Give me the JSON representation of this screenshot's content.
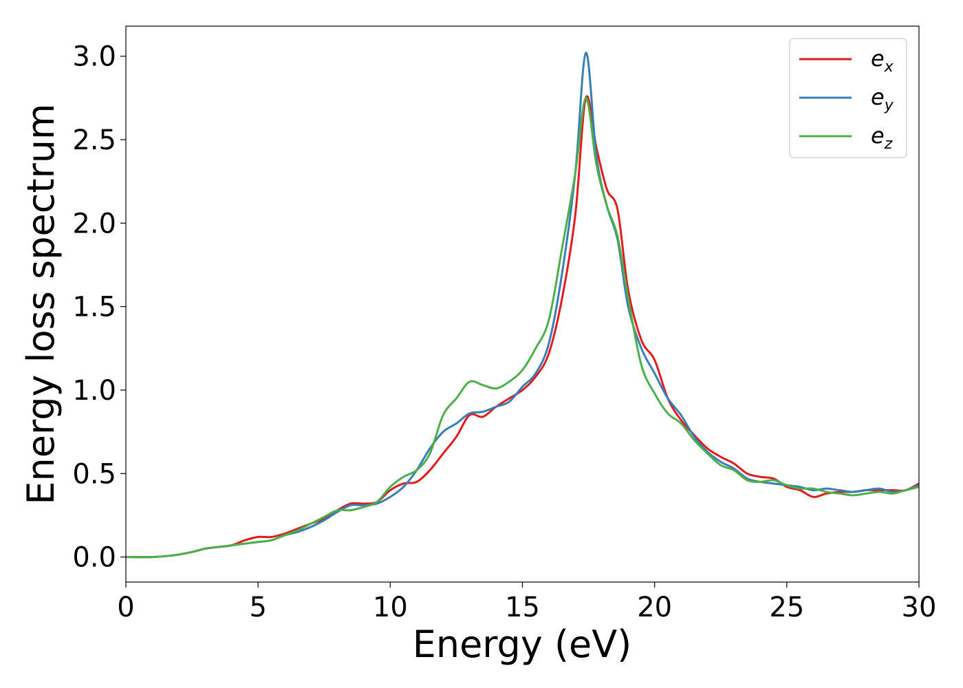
{
  "chart_data": {
    "type": "line",
    "xlabel": "Energy (eV)",
    "ylabel": "Energy loss spectrum",
    "xlim": [
      0,
      30
    ],
    "ylim": [
      -0.15,
      3.18
    ],
    "xticks": [
      0,
      5,
      10,
      15,
      20,
      25,
      30
    ],
    "xtick_labels": [
      "0",
      "5",
      "10",
      "15",
      "20",
      "25",
      "30"
    ],
    "yticks": [
      0.0,
      0.5,
      1.0,
      1.5,
      2.0,
      2.5,
      3.0
    ],
    "ytick_labels": [
      "0.0",
      "0.5",
      "1.0",
      "1.5",
      "2.0",
      "2.5",
      "3.0"
    ],
    "grid": false,
    "legend_position": "top-right",
    "series": [
      {
        "name": "e",
        "name_sub": "x",
        "color": "#e41a1c",
        "x": [
          0,
          1,
          1.8,
          2.5,
          3,
          3.5,
          4,
          4.5,
          5,
          5.5,
          6,
          6.5,
          7,
          7.5,
          8,
          8.5,
          9,
          9.5,
          10,
          10.5,
          11,
          11.5,
          12,
          12.5,
          13,
          13.5,
          14,
          14.5,
          15,
          15.5,
          16,
          16.5,
          17,
          17.4,
          17.8,
          18.2,
          18.6,
          19,
          19.5,
          20,
          20.5,
          21,
          21.5,
          22,
          22.5,
          23,
          23.5,
          24,
          24.5,
          25,
          25.5,
          26,
          26.5,
          27,
          27.5,
          28,
          28.5,
          29,
          29.5,
          30
        ],
        "y": [
          0.0,
          0.0,
          0.01,
          0.03,
          0.05,
          0.06,
          0.07,
          0.1,
          0.12,
          0.12,
          0.14,
          0.17,
          0.2,
          0.23,
          0.28,
          0.32,
          0.32,
          0.33,
          0.4,
          0.44,
          0.45,
          0.52,
          0.62,
          0.72,
          0.85,
          0.84,
          0.9,
          0.95,
          1.0,
          1.08,
          1.22,
          1.55,
          2.05,
          2.75,
          2.45,
          2.2,
          2.08,
          1.6,
          1.3,
          1.18,
          0.95,
          0.82,
          0.73,
          0.65,
          0.6,
          0.56,
          0.5,
          0.48,
          0.47,
          0.42,
          0.4,
          0.36,
          0.38,
          0.39,
          0.39,
          0.4,
          0.4,
          0.4,
          0.4,
          0.44
        ]
      },
      {
        "name": "e",
        "name_sub": "y",
        "color": "#377eb8",
        "x": [
          0,
          1,
          1.8,
          2.5,
          3,
          3.5,
          4,
          4.5,
          5,
          5.5,
          6,
          6.5,
          7,
          7.5,
          8,
          8.5,
          9,
          9.5,
          10,
          10.5,
          11,
          11.5,
          12,
          12.5,
          13,
          13.5,
          14,
          14.5,
          15,
          15.5,
          16,
          16.5,
          17,
          17.4,
          17.8,
          18.2,
          18.6,
          19,
          19.5,
          20,
          20.5,
          21,
          21.5,
          22,
          22.5,
          23,
          23.5,
          24,
          24.5,
          25,
          25.5,
          26,
          26.5,
          27,
          27.5,
          28,
          28.5,
          29,
          29.5,
          30
        ],
        "y": [
          0.0,
          0.0,
          0.01,
          0.03,
          0.05,
          0.06,
          0.07,
          0.08,
          0.09,
          0.1,
          0.13,
          0.15,
          0.18,
          0.22,
          0.27,
          0.31,
          0.31,
          0.32,
          0.36,
          0.42,
          0.52,
          0.65,
          0.75,
          0.8,
          0.86,
          0.87,
          0.9,
          0.93,
          1.02,
          1.1,
          1.28,
          1.7,
          2.3,
          3.02,
          2.4,
          2.1,
          1.9,
          1.5,
          1.25,
          1.1,
          0.95,
          0.85,
          0.72,
          0.63,
          0.57,
          0.53,
          0.47,
          0.45,
          0.44,
          0.43,
          0.42,
          0.4,
          0.41,
          0.4,
          0.39,
          0.4,
          0.41,
          0.39,
          0.4,
          0.43
        ]
      },
      {
        "name": "e",
        "name_sub": "z",
        "color": "#4daf4a",
        "x": [
          0,
          1,
          1.8,
          2.5,
          3,
          3.5,
          4,
          4.5,
          5,
          5.5,
          6,
          6.5,
          7,
          7.5,
          8,
          8.5,
          9,
          9.5,
          10,
          10.5,
          11,
          11.5,
          12,
          12.5,
          13,
          13.5,
          14,
          14.5,
          15,
          15.5,
          16,
          16.5,
          17,
          17.4,
          17.8,
          18.2,
          18.6,
          19,
          19.5,
          20,
          20.5,
          21,
          21.5,
          22,
          22.5,
          23,
          23.5,
          24,
          24.5,
          25,
          25.5,
          26,
          26.5,
          27,
          27.5,
          28,
          28.5,
          29,
          29.5,
          30
        ],
        "y": [
          0.0,
          0.0,
          0.01,
          0.03,
          0.05,
          0.06,
          0.07,
          0.08,
          0.09,
          0.1,
          0.13,
          0.16,
          0.2,
          0.24,
          0.28,
          0.28,
          0.3,
          0.33,
          0.42,
          0.48,
          0.52,
          0.62,
          0.85,
          0.95,
          1.05,
          1.03,
          1.01,
          1.05,
          1.12,
          1.25,
          1.42,
          1.85,
          2.3,
          2.75,
          2.35,
          2.1,
          1.92,
          1.55,
          1.15,
          0.98,
          0.86,
          0.8,
          0.7,
          0.62,
          0.55,
          0.52,
          0.46,
          0.45,
          0.46,
          0.43,
          0.41,
          0.41,
          0.39,
          0.38,
          0.37,
          0.38,
          0.39,
          0.38,
          0.4,
          0.42
        ]
      }
    ]
  }
}
